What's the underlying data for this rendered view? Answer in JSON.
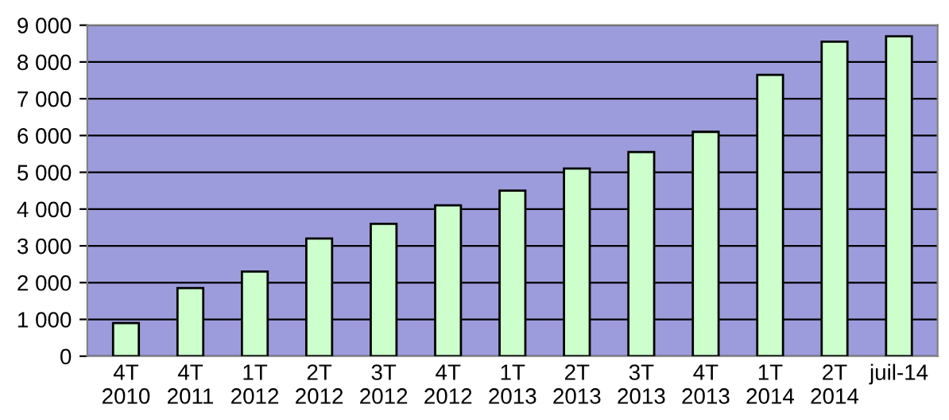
{
  "chart_data": {
    "type": "bar",
    "categories": [
      "4T\n2010",
      "4T\n2011",
      "1T\n2012",
      "2T\n2012",
      "3T\n2012",
      "4T\n2012",
      "1T\n2013",
      "2T\n2013",
      "3T\n2013",
      "4T\n2013",
      "1T\n2014",
      "2T\n2014",
      "juil-14"
    ],
    "values": [
      900,
      1850,
      2300,
      3200,
      3600,
      4100,
      4500,
      5100,
      5550,
      6100,
      7650,
      8550,
      8700
    ],
    "color": "#ccffcc",
    "ylim": [
      0,
      9000
    ],
    "yticks": [
      {
        "value": 0,
        "label": "0"
      },
      {
        "value": 1000,
        "label": "1 000"
      },
      {
        "value": 2000,
        "label": "2 000"
      },
      {
        "value": 3000,
        "label": "3 000"
      },
      {
        "value": 4000,
        "label": "4 000"
      },
      {
        "value": 5000,
        "label": "5 000"
      },
      {
        "value": 6000,
        "label": "6 000"
      },
      {
        "value": 7000,
        "label": "7 000"
      },
      {
        "value": 8000,
        "label": "8 000"
      },
      {
        "value": 9000,
        "label": "9 000"
      }
    ],
    "grid": "y"
  }
}
